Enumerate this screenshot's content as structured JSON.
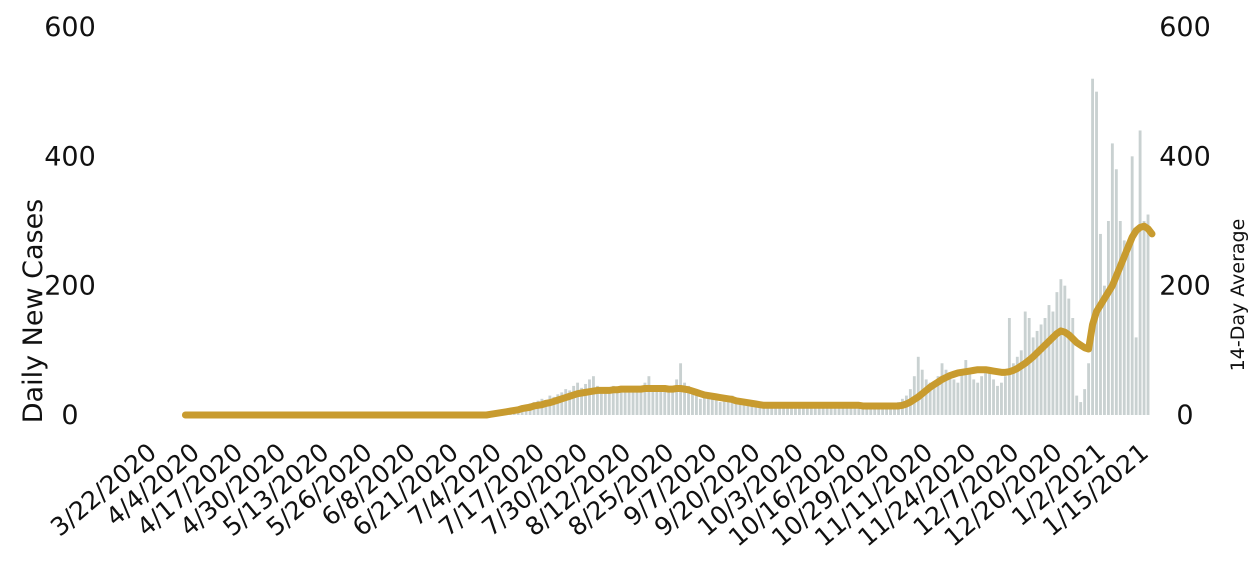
{
  "chart_data": {
    "type": "bar",
    "title": "",
    "ylabel": "Daily New Cases",
    "y2label": "14-Day Average",
    "ylim": [
      0,
      600
    ],
    "y_ticks": [
      0,
      200,
      400,
      600
    ],
    "x_tick_labels": [
      "3/22/2020",
      "4/4/2020",
      "4/17/2020",
      "4/30/2020",
      "5/13/2020",
      "5/26/2020",
      "6/8/2020",
      "6/21/2020",
      "7/4/2020",
      "7/17/2020",
      "7/30/2020",
      "8/12/2020",
      "8/25/2020",
      "9/7/2020",
      "9/20/2020",
      "10/3/2020",
      "10/16/2020",
      "10/29/2020",
      "11/11/2020",
      "11/24/2020",
      "12/7/2020",
      "12/20/2020",
      "1/2/2021",
      "1/15/2021"
    ],
    "x_start": "3/22/2020",
    "x_end": "1/20/2021",
    "colors": {
      "bars": "#c9d1d1",
      "average_line": "#c89b2f"
    },
    "series": [
      {
        "name": "Daily New Cases",
        "type": "bar",
        "values": [
          0,
          0,
          0,
          0,
          0,
          0,
          0,
          0,
          0,
          0,
          0,
          0,
          0,
          0,
          0,
          0,
          0,
          0,
          0,
          0,
          0,
          0,
          0,
          0,
          0,
          0,
          0,
          0,
          0,
          0,
          0,
          0,
          0,
          0,
          0,
          0,
          0,
          0,
          0,
          0,
          0,
          0,
          0,
          0,
          0,
          0,
          0,
          0,
          0,
          0,
          0,
          0,
          0,
          0,
          0,
          0,
          0,
          0,
          0,
          0,
          0,
          0,
          0,
          0,
          0,
          0,
          0,
          0,
          0,
          0,
          0,
          0,
          0,
          0,
          0,
          0,
          0,
          0,
          0,
          0,
          0,
          0,
          0,
          0,
          0,
          0,
          0,
          0,
          0,
          0,
          0,
          2,
          4,
          6,
          5,
          8,
          10,
          8,
          12,
          15,
          14,
          18,
          20,
          22,
          25,
          20,
          30,
          28,
          32,
          35,
          40,
          38,
          45,
          50,
          42,
          48,
          55,
          60,
          45,
          40,
          38,
          42,
          45,
          40,
          38,
          35,
          40,
          42,
          38,
          36,
          50,
          60,
          45,
          40,
          42,
          45,
          40,
          38,
          55,
          80,
          50,
          45,
          40,
          30,
          25,
          28,
          30,
          32,
          25,
          20,
          22,
          28,
          30,
          25,
          20,
          18,
          16,
          15,
          14,
          15,
          16,
          15,
          14,
          13,
          14,
          15,
          16,
          14,
          13,
          14,
          15,
          14,
          15,
          16,
          14,
          15,
          14,
          15,
          16,
          14,
          13,
          14,
          15,
          14,
          13,
          12,
          14,
          15,
          14,
          13,
          14,
          12,
          13,
          14,
          20,
          25,
          30,
          40,
          60,
          90,
          70,
          55,
          50,
          45,
          60,
          80,
          70,
          60,
          55,
          50,
          65,
          85,
          70,
          55,
          50,
          60,
          70,
          65,
          55,
          45,
          50,
          60,
          150,
          80,
          90,
          100,
          160,
          150,
          120,
          130,
          140,
          150,
          170,
          160,
          190,
          210,
          200,
          180,
          150,
          30,
          20,
          40,
          80,
          520,
          500,
          280,
          200,
          300,
          420,
          380,
          300,
          270,
          250,
          400,
          120,
          440,
          300,
          310
        ]
      },
      {
        "name": "14-Day Average",
        "type": "line",
        "values": [
          0,
          0,
          0,
          0,
          0,
          0,
          0,
          0,
          0,
          0,
          0,
          0,
          0,
          0,
          0,
          0,
          0,
          0,
          0,
          0,
          0,
          0,
          0,
          0,
          0,
          0,
          0,
          0,
          0,
          0,
          0,
          0,
          0,
          0,
          0,
          0,
          0,
          0,
          0,
          0,
          0,
          0,
          0,
          0,
          0,
          0,
          0,
          0,
          0,
          0,
          0,
          0,
          0,
          0,
          0,
          0,
          0,
          0,
          0,
          0,
          0,
          0,
          0,
          0,
          0,
          0,
          0,
          0,
          0,
          0,
          0,
          0,
          0,
          0,
          0,
          0,
          0,
          0,
          0,
          0,
          0,
          0,
          0,
          0,
          0,
          0,
          0,
          0,
          0,
          0,
          0,
          1,
          2,
          3,
          4,
          5,
          6,
          7,
          8,
          10,
          11,
          12,
          14,
          15,
          16,
          18,
          19,
          21,
          23,
          25,
          27,
          29,
          31,
          33,
          34,
          35,
          36,
          37,
          38,
          38,
          38,
          38,
          39,
          39,
          40,
          40,
          40,
          40,
          40,
          40,
          41,
          41,
          41,
          41,
          41,
          41,
          40,
          40,
          41,
          41,
          40,
          39,
          37,
          35,
          33,
          31,
          30,
          29,
          28,
          27,
          26,
          25,
          24,
          22,
          21,
          20,
          19,
          18,
          17,
          16,
          15,
          15,
          15,
          15,
          15,
          15,
          15,
          15,
          15,
          15,
          15,
          15,
          15,
          15,
          15,
          15,
          15,
          15,
          15,
          15,
          15,
          15,
          15,
          15,
          15,
          14,
          14,
          14,
          14,
          14,
          14,
          14,
          14,
          14,
          14,
          15,
          17,
          20,
          24,
          28,
          33,
          38,
          43,
          47,
          51,
          55,
          58,
          61,
          63,
          65,
          66,
          67,
          68,
          69,
          70,
          70,
          70,
          69,
          68,
          67,
          66,
          66,
          67,
          69,
          72,
          76,
          80,
          85,
          90,
          96,
          102,
          108,
          114,
          120,
          126,
          130,
          128,
          124,
          118,
          112,
          108,
          104,
          102,
          140,
          160,
          170,
          180,
          190,
          200,
          215,
          230,
          245,
          260,
          275,
          285,
          290,
          292,
          288,
          280
        ]
      }
    ]
  }
}
